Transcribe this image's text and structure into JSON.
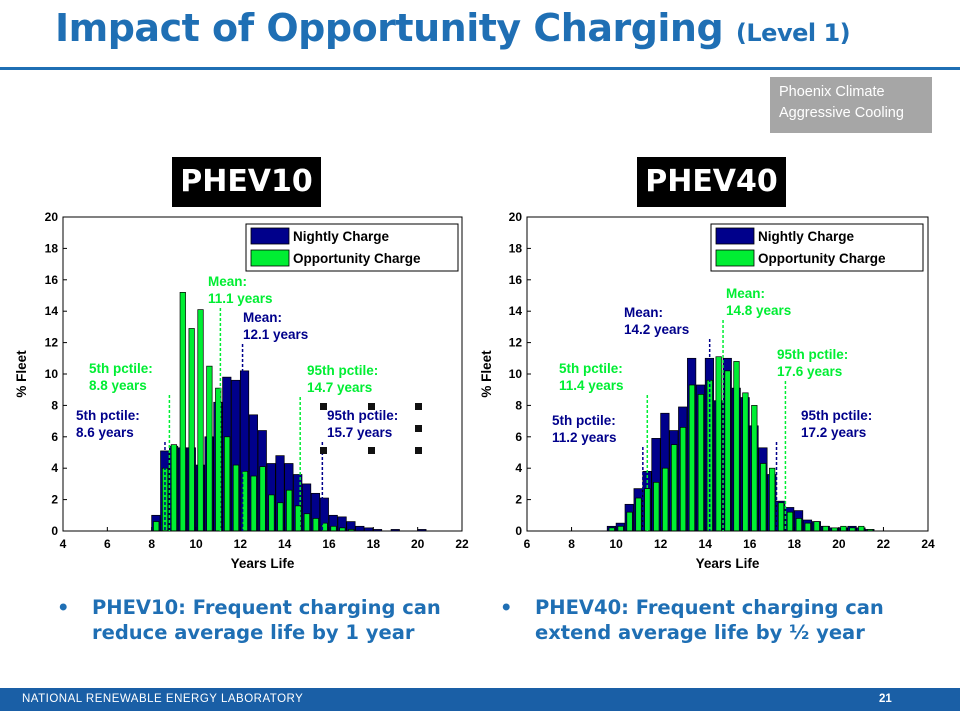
{
  "slide": {
    "title": "Impact of Opportunity Charging",
    "title_sub": "(Level 1)",
    "note_line1": "Phoenix Climate",
    "note_line2": "Aggressive Cooling",
    "footer_label": "NATIONAL RENEWABLE ENERGY LABORATORY",
    "page_number": "21",
    "colors": {
      "title": "#1f6fb4",
      "nightly": "#00008b",
      "opportunity": "#00ee33",
      "footer": "#1a5fa6"
    }
  },
  "bullets": [
    {
      "marker": "•",
      "line1": "PHEV10: Frequent charging can",
      "line2": "reduce average life by 1 year"
    },
    {
      "marker": "•",
      "line1": "PHEV40: Frequent charging can",
      "line2": "extend average life by ½ year"
    }
  ],
  "chart_data": [
    {
      "type": "bar",
      "panel_title": "PHEV10",
      "xlabel": "Years Life",
      "ylabel": "% Fleet",
      "xlim": [
        4,
        22
      ],
      "ylim": [
        0,
        20
      ],
      "xticks": [
        4,
        6,
        8,
        10,
        12,
        14,
        16,
        18,
        20,
        22
      ],
      "yticks": [
        0,
        2,
        4,
        6,
        8,
        10,
        12,
        14,
        16,
        18,
        20
      ],
      "bin_width": 0.4,
      "series": [
        {
          "name": "Nightly Charge",
          "color": "#00008b",
          "x": [
            8.2,
            8.6,
            9.0,
            9.4,
            9.8,
            10.2,
            10.6,
            11.0,
            11.4,
            11.8,
            12.2,
            12.6,
            13.0,
            13.4,
            13.8,
            14.2,
            14.6,
            15.0,
            15.4,
            15.8,
            16.2,
            16.6,
            17.0,
            17.4,
            17.8,
            18.2,
            19.0,
            20.2
          ],
          "values": [
            1.0,
            5.1,
            5.4,
            5.3,
            5.3,
            4.2,
            6.0,
            8.2,
            9.8,
            9.6,
            10.2,
            7.4,
            6.4,
            4.3,
            4.8,
            4.3,
            3.6,
            3.0,
            2.4,
            2.1,
            1.0,
            0.9,
            0.6,
            0.3,
            0.2,
            0.1,
            0.1,
            0.1
          ]
        },
        {
          "name": "Opportunity Charge",
          "color": "#00ee33",
          "x": [
            8.2,
            8.6,
            9.0,
            9.4,
            9.8,
            10.2,
            10.6,
            11.0,
            11.4,
            11.8,
            12.2,
            12.6,
            13.0,
            13.4,
            13.8,
            14.2,
            14.6,
            15.0,
            15.4,
            15.8,
            16.2,
            16.6,
            17.0
          ],
          "values": [
            0.6,
            4.0,
            5.5,
            15.2,
            12.9,
            14.1,
            10.5,
            9.1,
            6.0,
            4.2,
            3.8,
            3.5,
            4.1,
            2.3,
            1.8,
            2.6,
            1.6,
            1.1,
            0.8,
            0.5,
            0.3,
            0.2,
            0.1
          ]
        }
      ],
      "legend": "top-right",
      "annotations": [
        {
          "lines": [
            "Mean:",
            "11.1 years"
          ],
          "color": "#00ee33",
          "x": 11.1
        },
        {
          "lines": [
            "Mean:",
            "12.1 years"
          ],
          "color": "#00008b",
          "x": 12.1
        },
        {
          "lines": [
            "5th pctile:",
            "8.8 years"
          ],
          "color": "#00ee33",
          "x": 8.8
        },
        {
          "lines": [
            "5th pctile:",
            "8.6 years"
          ],
          "color": "#00008b",
          "x": 8.6
        },
        {
          "lines": [
            "95th pctile:",
            "14.7 years"
          ],
          "color": "#00ee33",
          "x": 14.7
        },
        {
          "lines": [
            "95th pctile:",
            "15.7 years"
          ],
          "color": "#00008b",
          "x": 15.7
        }
      ]
    },
    {
      "type": "bar",
      "panel_title": "PHEV40",
      "xlabel": "Years Life",
      "ylabel": "% Fleet",
      "xlim": [
        6,
        24
      ],
      "ylim": [
        0,
        20
      ],
      "xticks": [
        6,
        8,
        10,
        12,
        14,
        16,
        18,
        20,
        22,
        24
      ],
      "yticks": [
        0,
        2,
        4,
        6,
        8,
        10,
        12,
        14,
        16,
        18,
        20
      ],
      "bin_width": 0.4,
      "series": [
        {
          "name": "Nightly Charge",
          "color": "#00008b",
          "x": [
            9.8,
            10.2,
            10.6,
            11.0,
            11.4,
            11.8,
            12.2,
            12.6,
            13.0,
            13.4,
            13.8,
            14.2,
            14.6,
            15.0,
            15.4,
            15.8,
            16.2,
            16.6,
            17.0,
            17.4,
            17.8,
            18.2,
            18.6,
            19.0,
            19.4,
            19.8,
            20.2,
            20.6,
            21.0,
            21.4
          ],
          "values": [
            0.3,
            0.5,
            1.7,
            2.7,
            3.8,
            5.9,
            7.5,
            6.4,
            7.9,
            11.0,
            9.3,
            11.0,
            8.3,
            11.0,
            9.1,
            8.5,
            6.7,
            5.3,
            3.6,
            1.9,
            1.5,
            1.3,
            0.7,
            0.6,
            0.3,
            0.2,
            0.2,
            0.3,
            0.2,
            0.1
          ]
        },
        {
          "name": "Opportunity Charge",
          "color": "#00ee33",
          "x": [
            9.8,
            10.2,
            10.6,
            11.0,
            11.4,
            11.8,
            12.2,
            12.6,
            13.0,
            13.4,
            13.8,
            14.2,
            14.6,
            15.0,
            15.4,
            15.8,
            16.2,
            16.6,
            17.0,
            17.4,
            17.8,
            18.2,
            18.6,
            19.0,
            19.4,
            19.8,
            20.2,
            20.6,
            21.0,
            21.4
          ],
          "values": [
            0.2,
            0.3,
            1.2,
            2.1,
            2.7,
            3.1,
            4.0,
            5.5,
            6.6,
            9.3,
            8.7,
            9.6,
            11.1,
            10.2,
            10.8,
            8.8,
            8.0,
            4.3,
            4.0,
            1.8,
            1.2,
            0.8,
            0.5,
            0.6,
            0.3,
            0.2,
            0.3,
            0.2,
            0.3,
            0.1
          ]
        }
      ],
      "legend": "top-right",
      "annotations": [
        {
          "lines": [
            "Mean:",
            "14.2 years"
          ],
          "color": "#00008b",
          "x": 14.2
        },
        {
          "lines": [
            "Mean:",
            "14.8 years"
          ],
          "color": "#00ee33",
          "x": 14.8
        },
        {
          "lines": [
            "5th pctile:",
            "11.4 years"
          ],
          "color": "#00ee33",
          "x": 11.4
        },
        {
          "lines": [
            "5th pctile:",
            "11.2 years"
          ],
          "color": "#00008b",
          "x": 11.2
        },
        {
          "lines": [
            "95th pctile:",
            "17.6 years"
          ],
          "color": "#00ee33",
          "x": 17.6
        },
        {
          "lines": [
            "95th pctile:",
            "17.2 years"
          ],
          "color": "#00008b",
          "x": 17.2
        }
      ]
    }
  ]
}
